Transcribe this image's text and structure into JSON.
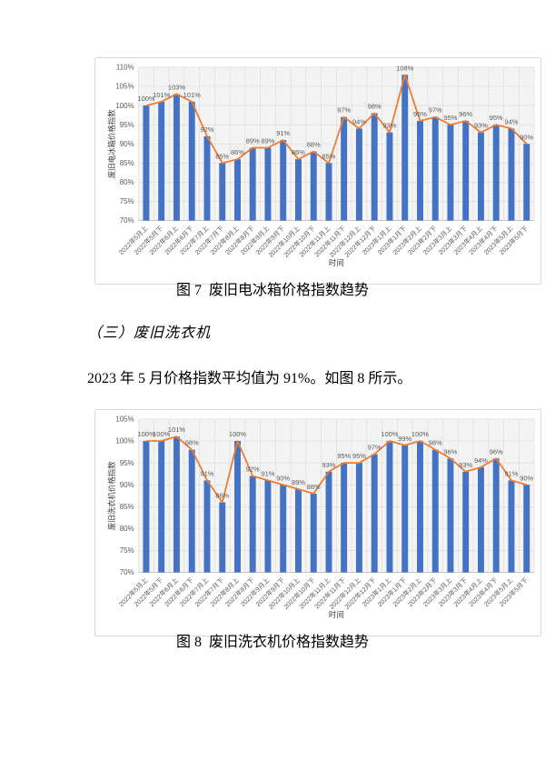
{
  "page": {
    "caption_fig7": "图 7  废旧电冰箱价格指数趋势",
    "section_heading": "（三）废旧洗衣机",
    "body_text": "2023 年 5 月价格指数平均值为 91%。如图 8 所示。",
    "caption_fig8": "图 8  废旧洗衣机价格指数趋势"
  },
  "colors": {
    "bar": "#4472C4",
    "line": "#ED7D31",
    "data_label": "#595959",
    "axis_label": "#595959",
    "axis_title": "#404040",
    "grid": "#D9D9D9",
    "axis_line": "#BFBFBF",
    "chart_border": "#D9D9D9",
    "plot_hatch": "#E8E8E8"
  },
  "chart_data": [
    {
      "type": "bar",
      "combo": "bar+line",
      "title": "",
      "ylabel": "废旧电冰箱价格指数",
      "xlabel": "时间",
      "ylim": [
        70,
        110
      ],
      "ytick_step": 5,
      "yticks": [
        "70%",
        "75%",
        "80%",
        "85%",
        "90%",
        "95%",
        "100%",
        "105%",
        "110%"
      ],
      "grid": true,
      "legend_position": "none",
      "categories": [
        "2022年5月上",
        "2022年5月下",
        "2022年6月上",
        "2022年6月下",
        "2022年7月上",
        "2022年7月下",
        "2022年8月上",
        "2022年8月下",
        "2022年9月上",
        "2022年9月下",
        "2022年10月上",
        "2022年10月下",
        "2022年11月上",
        "2022年11月下",
        "2022年12月上",
        "2022年12月下",
        "2023年1月上",
        "2023年1月下",
        "2023年2月上",
        "2023年2月下",
        "2023年3月上",
        "2023年3月下",
        "2023年4月上",
        "2023年4月下",
        "2023年5月上",
        "2023年5月下"
      ],
      "values": [
        100,
        101,
        103,
        101,
        92,
        85,
        86,
        89,
        89,
        91,
        86,
        88,
        85,
        97,
        94,
        98,
        93,
        108,
        96,
        97,
        95,
        96,
        93,
        95,
        94,
        90
      ],
      "data_labels": [
        "100%",
        "101%",
        "103%",
        "101%",
        "92%",
        "85%",
        "86%",
        "89%",
        "89%",
        "91%",
        "86%",
        "88%",
        "85%",
        "97%",
        "94%",
        "98%",
        "93%",
        "108%",
        "96%",
        "97%",
        "95%",
        "96%",
        "93%",
        "95%",
        "94%",
        "90%"
      ]
    },
    {
      "type": "bar",
      "combo": "bar+line",
      "title": "",
      "ylabel": "废旧洗衣机价格指数",
      "xlabel": "时间",
      "ylim": [
        70,
        105
      ],
      "ytick_step": 5,
      "yticks": [
        "70%",
        "75%",
        "80%",
        "85%",
        "90%",
        "95%",
        "100%",
        "105%"
      ],
      "grid": true,
      "legend_position": "none",
      "categories": [
        "2022年5月上",
        "2022年5月下",
        "2022年6月上",
        "2022年6月下",
        "2022年7月上",
        "2022年7月下",
        "2022年8月上",
        "2022年8月下",
        "2022年9月上",
        "2022年9月下",
        "2022年10月上",
        "2022年10月下",
        "2022年11月上",
        "2022年11月下",
        "2022年12月上",
        "2022年12月下",
        "2023年1月上",
        "2023年1月下",
        "2023年2月上",
        "2023年2月下",
        "2023年3月上",
        "2023年3月下",
        "2023年4月上",
        "2023年4月下",
        "2023年5月上",
        "2023年5月下"
      ],
      "values": [
        100,
        100,
        101,
        98,
        91,
        86,
        100,
        92,
        91,
        90,
        89,
        88,
        93,
        95,
        95,
        97,
        100,
        99,
        100,
        98,
        96,
        93,
        94,
        96,
        91,
        90
      ],
      "data_labels": [
        "100%",
        "100%",
        "101%",
        "98%",
        "91%",
        "86%",
        "100%",
        "92%",
        "91%",
        "90%",
        "89%",
        "88%",
        "93%",
        "95%",
        "95%",
        "97%",
        "100%",
        "99%",
        "100%",
        "98%",
        "96%",
        "93%",
        "94%",
        "96%",
        "91%",
        "90%"
      ]
    }
  ]
}
